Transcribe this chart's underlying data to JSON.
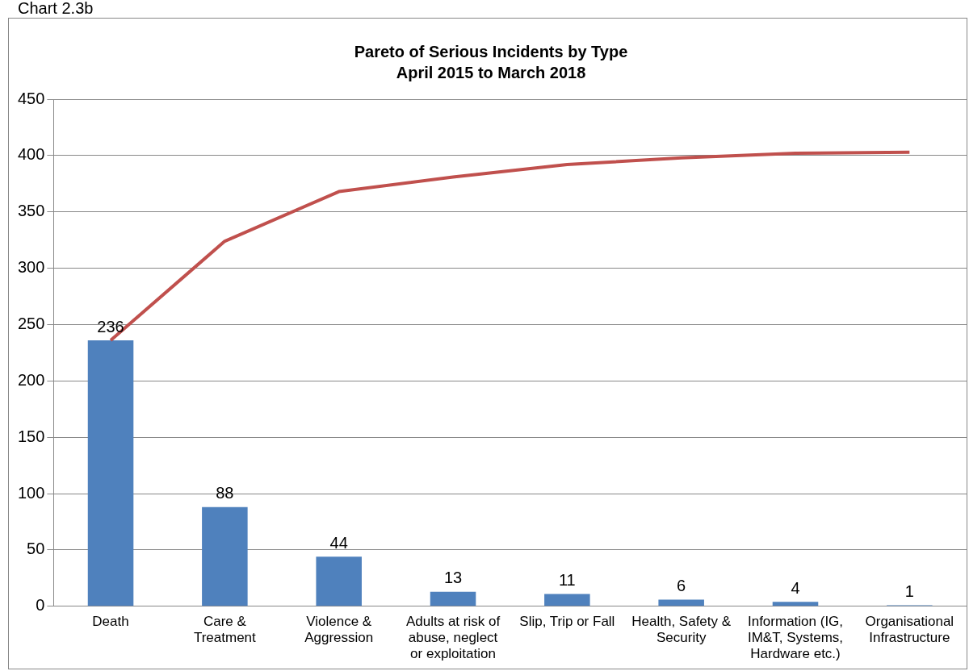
{
  "chart_data": {
    "type": "bar",
    "title": "Pareto of Serious Incidents by Type",
    "subtitle": "April 2015 to March 2018",
    "annotations": [
      "Chart 2.3b"
    ],
    "categories": [
      "Death",
      "Care & Treatment",
      "Violence & Aggression",
      "Adults at risk of abuse, neglect or exploitation",
      "Slip, Trip or Fall",
      "Health, Safety & Security",
      "Information (IG, IM&T, Systems, Hardware etc.)",
      "Organisational Infrastructure"
    ],
    "series": [
      {
        "color": "#4f81bd",
        "values": [
          236,
          88,
          44,
          13,
          11,
          6,
          4,
          1
        ],
        "value_labels": [
          "236",
          "88",
          "44",
          "13",
          "11",
          "6",
          "4",
          "1"
        ]
      },
      {
        "type": "line",
        "color": "#c0504d",
        "values": [
          236,
          324,
          368,
          381,
          392,
          398,
          402,
          403
        ]
      }
    ],
    "ylim": [
      0,
      450
    ],
    "yticks": [
      0,
      50,
      100,
      150,
      200,
      250,
      300,
      350,
      400,
      450
    ],
    "grid": "y",
    "legend": false,
    "marker": "none"
  }
}
